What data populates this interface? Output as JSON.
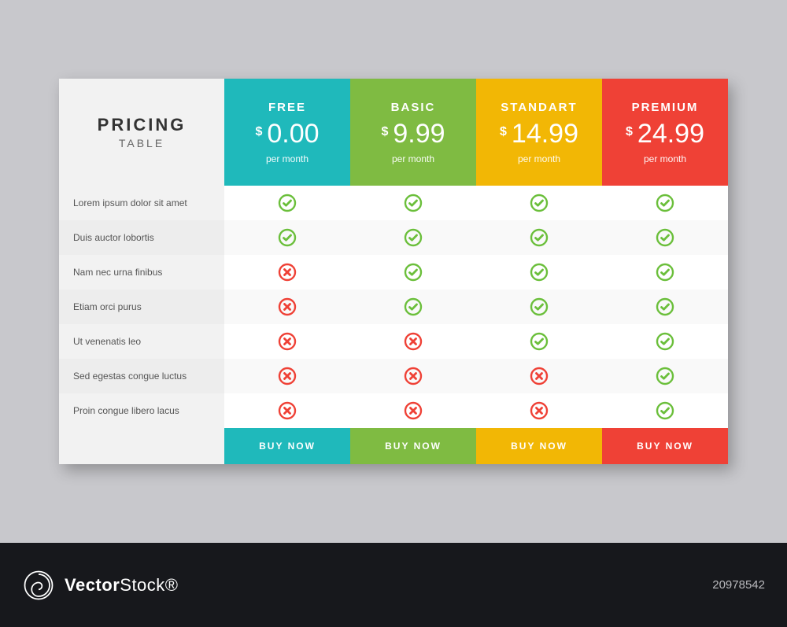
{
  "title": {
    "main": "PRICING",
    "sub": "TABLE"
  },
  "currency": "$",
  "period_label": "per month",
  "buy_label": "BUY NOW",
  "colors": {
    "page_bg": "#c8c8cc",
    "check": "#6bbf3b",
    "cross": "#ef4136",
    "row_alt": "#f9f9f9",
    "label_bg": "#f2f2f2",
    "label_bg_alt": "#ededed"
  },
  "plans": [
    {
      "id": "free",
      "name": "FREE",
      "price": "0.00",
      "color": "#1fb9bb"
    },
    {
      "id": "basic",
      "name": "BASIC",
      "price": "9.99",
      "color": "#7fbb42"
    },
    {
      "id": "standart",
      "name": "STANDART",
      "price": "14.99",
      "color": "#f2b705"
    },
    {
      "id": "premium",
      "name": "PREMIUM",
      "price": "24.99",
      "color": "#ef4136"
    }
  ],
  "features": [
    {
      "label": "Lorem ipsum dolor sit amet",
      "values": [
        true,
        true,
        true,
        true
      ]
    },
    {
      "label": "Duis auctor lobortis",
      "values": [
        true,
        true,
        true,
        true
      ]
    },
    {
      "label": "Nam nec urna finibus",
      "values": [
        false,
        true,
        true,
        true
      ]
    },
    {
      "label": "Etiam orci purus",
      "values": [
        false,
        true,
        true,
        true
      ]
    },
    {
      "label": "Ut venenatis leo",
      "values": [
        false,
        false,
        true,
        true
      ]
    },
    {
      "label": "Sed egestas congue luctus",
      "values": [
        false,
        false,
        false,
        true
      ]
    },
    {
      "label": "Proin congue libero lacus",
      "values": [
        false,
        false,
        false,
        true
      ]
    }
  ],
  "watermark": {
    "brand_a": "Vector",
    "brand_b": "Stock",
    "suffix": "®",
    "id": "20978542"
  }
}
